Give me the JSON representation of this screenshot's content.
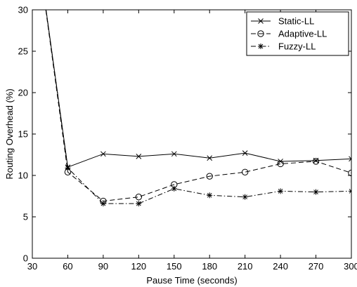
{
  "chart_data": {
    "type": "line",
    "xlabel": "Pause Time (seconds)",
    "ylabel": "Routing Overhead (%)",
    "xlim": [
      30,
      300
    ],
    "ylim": [
      0,
      30
    ],
    "xticks": [
      "30",
      "60",
      "90",
      "120",
      "150",
      "180",
      "210",
      "240",
      "270",
      "300"
    ],
    "yticks": [
      "0",
      "5",
      "10",
      "15",
      "20",
      "25",
      "30"
    ],
    "grid": false,
    "legend_position": "top-right",
    "series": [
      {
        "name": "Static-LL",
        "marker": "x",
        "line_style": "solid",
        "x": [
          30,
          60,
          90,
          120,
          150,
          180,
          210,
          240,
          270,
          300
        ],
        "y": [
          42,
          11.0,
          12.6,
          12.3,
          12.6,
          12.1,
          12.7,
          11.7,
          11.8,
          12.0
        ]
      },
      {
        "name": "Adaptive-LL",
        "marker": "o",
        "line_style": "dashed",
        "x": [
          30,
          60,
          90,
          120,
          150,
          180,
          210,
          240,
          270,
          300
        ],
        "y": [
          42,
          10.4,
          6.9,
          7.4,
          8.9,
          9.9,
          10.4,
          11.4,
          11.7,
          10.3
        ]
      },
      {
        "name": "Fuzzy-LL",
        "marker": "*",
        "line_style": "dashdot",
        "x": [
          30,
          60,
          90,
          120,
          150,
          180,
          210,
          240,
          270,
          300
        ],
        "y": [
          42,
          10.9,
          6.6,
          6.6,
          8.4,
          7.6,
          7.4,
          8.1,
          8.0,
          8.1
        ]
      }
    ]
  }
}
